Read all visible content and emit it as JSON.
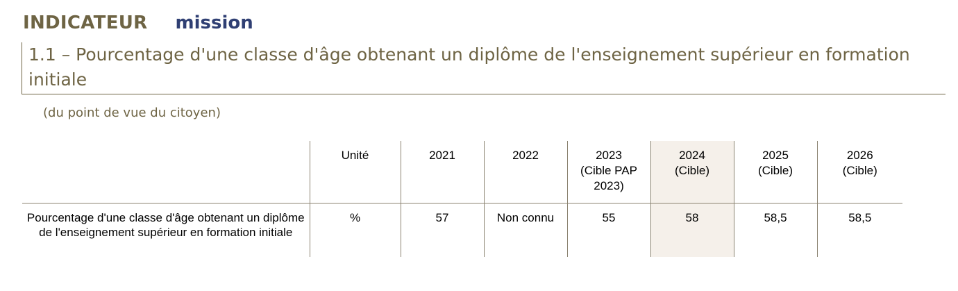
{
  "header": {
    "kicker": "INDICATEUR",
    "scope": "mission",
    "title": "1.1 – Pourcentage d'une classe d'âge obtenant un diplôme de l'enseignement supérieur en formation initiale",
    "subtitle": "(du point de vue du citoyen)"
  },
  "table": {
    "columns": [
      {
        "line1": "",
        "line2": "",
        "line3": ""
      },
      {
        "line1": "Unité",
        "line2": "",
        "line3": ""
      },
      {
        "line1": "2021",
        "line2": "",
        "line3": ""
      },
      {
        "line1": "2022",
        "line2": "",
        "line3": ""
      },
      {
        "line1": "2023",
        "line2": "(Cible PAP",
        "line3": "2023)"
      },
      {
        "line1": "2024",
        "line2": "(Cible)",
        "line3": ""
      },
      {
        "line1": "2025",
        "line2": "(Cible)",
        "line3": ""
      },
      {
        "line1": "2026",
        "line2": "(Cible)",
        "line3": ""
      }
    ],
    "rows": [
      {
        "label": "Pourcentage d'une classe d'âge obtenant un diplôme de l'enseignement supérieur en formation initiale",
        "cells": [
          "%",
          "57",
          "Non connu",
          "55",
          "58",
          "58,5",
          "58,5"
        ]
      }
    ]
  },
  "colors": {
    "heading": "#6e6444",
    "mission": "#2f3f73",
    "highlight_column": "#f5f0ea",
    "rules": "#8a8270"
  }
}
